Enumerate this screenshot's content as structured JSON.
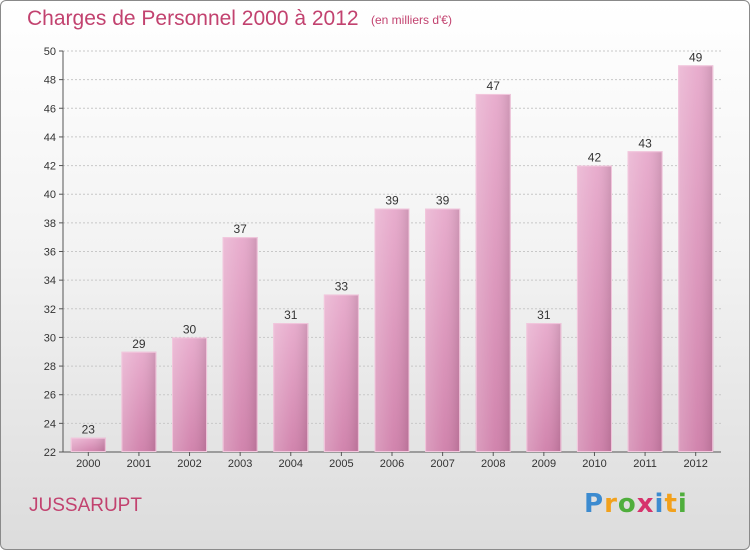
{
  "header": {
    "title": "Charges de Personnel 2000 à 2012",
    "subtitle": "(en milliers d'€)"
  },
  "footer": {
    "commune": "JUSSARUPT",
    "logo_text": "Proxiti"
  },
  "chart_data": {
    "type": "bar",
    "title": "Charges de Personnel 2000 à 2012",
    "subtitle": "(en milliers d'€)",
    "categories": [
      "2000",
      "2001",
      "2002",
      "2003",
      "2004",
      "2005",
      "2006",
      "2007",
      "2008",
      "2009",
      "2010",
      "2011",
      "2012"
    ],
    "values": [
      23,
      29,
      30,
      37,
      31,
      33,
      39,
      39,
      47,
      31,
      42,
      43,
      49
    ],
    "ylim": [
      22,
      50
    ],
    "yticks": [
      22,
      24,
      26,
      28,
      30,
      32,
      34,
      36,
      38,
      40,
      42,
      44,
      46,
      48,
      50
    ],
    "grid": true,
    "bar_color": "#cf7ea9",
    "bar_color_light": "#e7a9cb",
    "grid_color": "#c8c8c8"
  }
}
